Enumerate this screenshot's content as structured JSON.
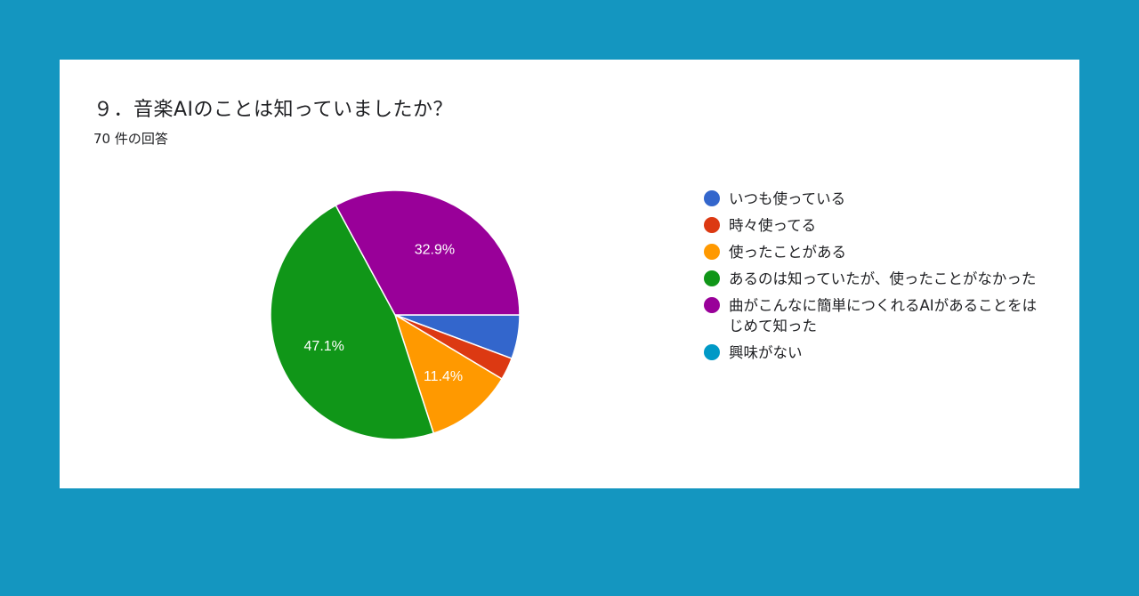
{
  "question": {
    "title": "９．音楽AIのことは知っていましたか？",
    "response_count": "70 件の回答"
  },
  "chart_data": {
    "type": "pie",
    "categories": [
      "いつも使っている",
      "時々使ってる",
      "使ったことがある",
      "あるのは知っていたが、使ったことがなかった",
      "曲がこんなに簡単につくれるAIがあることをはじめて知った",
      "興味がない"
    ],
    "values": [
      5.7,
      2.9,
      11.4,
      47.1,
      32.9,
      0
    ],
    "display_labels": [
      "",
      "",
      "11.4%",
      "47.1%",
      "32.9%",
      ""
    ],
    "colors": [
      "#3366cc",
      "#dc3912",
      "#ff9900",
      "#109618",
      "#990099",
      "#0099c6"
    ],
    "start_angle_deg": 90,
    "direction": "clockwise-from-east",
    "legend_position": "right"
  }
}
